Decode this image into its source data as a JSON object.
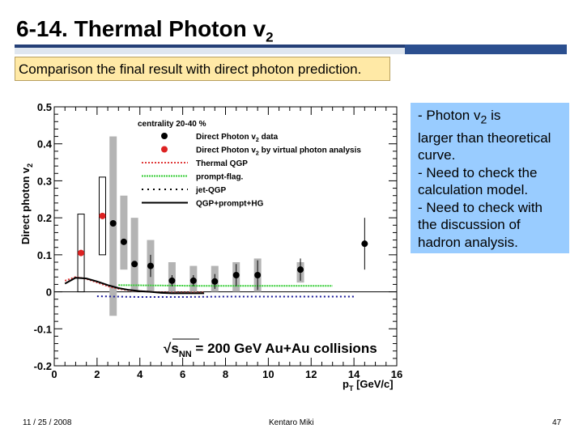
{
  "slide": {
    "title_main": "6-14. Thermal Photon v",
    "title_sub": "2",
    "banner": "Comparison the final result with direct photon prediction.",
    "notes": [
      {
        "pre": "- Photon v",
        "sub": "2",
        "post": " is"
      },
      {
        "pre": "larger than theoretical",
        "sub": "",
        "post": ""
      },
      {
        "pre": "curve.",
        "sub": "",
        "post": ""
      },
      {
        "pre": "- Need to check the",
        "sub": "",
        "post": ""
      },
      {
        "pre": "calculation model.",
        "sub": "",
        "post": ""
      },
      {
        "pre": "- Need to check with",
        "sub": "",
        "post": ""
      },
      {
        "pre": "the discussion of",
        "sub": "",
        "post": ""
      },
      {
        "pre": "hadron analysis.",
        "sub": "",
        "post": ""
      }
    ],
    "footer_date": "11 / 25 / 2008",
    "footer_author": "Kentaro Miki",
    "footer_page": "47"
  },
  "colors": {
    "title_rule": "#243f77",
    "banner_bg": "#ffe9a6",
    "note_bg": "#99ccff",
    "data_black": "#000000",
    "data_red": "#dd2222",
    "syst_gray": "#b4b4b4",
    "thermal_red": "#e03a3a",
    "prompt_green": "#33cc33",
    "jet_blue": "#1a1a99"
  },
  "chart_data": {
    "type": "scatter",
    "title": "",
    "xlabel": "p_T [GeV/c]",
    "xlabel_main": "p",
    "xlabel_sub": "T",
    "xlabel_unit": "[GeV/c]",
    "ylabel": "Direct photon v_2",
    "ylabel_main": "Direct photon v",
    "ylabel_sub": "2",
    "xlim": [
      0,
      16
    ],
    "ylim": [
      -0.2,
      0.5
    ],
    "x_ticks": [
      0,
      2,
      4,
      6,
      8,
      10,
      12,
      14,
      16
    ],
    "x_tick_labels": [
      "0",
      "2",
      "4",
      "6",
      "8",
      "10",
      "12",
      "14",
      "16"
    ],
    "y_ticks": [
      -0.2,
      -0.1,
      0,
      0.1,
      0.2,
      0.3,
      0.4,
      0.5
    ],
    "y_tick_labels": [
      "-0.2",
      "-0.1",
      "0",
      "0.1",
      "0.2",
      "0.3",
      "0.4",
      "0.5"
    ],
    "annotation_sqrt": "√",
    "annotation_main": "s",
    "annotation_sub": "NN",
    "annotation_rest": " = 200 GeV Au+Au collisions",
    "legend_header": "centrality 20-40 %",
    "legend": [
      {
        "label": "Direct Photon v",
        "sub": "2",
        "post": " data",
        "kind": "black-dot"
      },
      {
        "label": "Direct Photon v",
        "sub": "2",
        "post": " by virtual photon analysis",
        "kind": "red-dot"
      },
      {
        "label": "Thermal QGP",
        "sub": "",
        "post": "",
        "kind": "red-dotted"
      },
      {
        "label": "prompt-flag.",
        "sub": "",
        "post": "",
        "kind": "green-dotted"
      },
      {
        "label": "jet-QGP",
        "sub": "",
        "post": "",
        "kind": "black-dotted"
      },
      {
        "label": "QGP+prompt+HG",
        "sub": "",
        "post": "",
        "kind": "black-solid"
      }
    ],
    "series": [
      {
        "name": "Direct Photon v2 data",
        "points": [
          {
            "x": 2.75,
            "y": 0.185,
            "err": 0.0,
            "syst": [
              -0.065,
              0.42
            ]
          },
          {
            "x": 3.25,
            "y": 0.135,
            "err": 0.0,
            "syst": [
              0.06,
              0.26
            ]
          },
          {
            "x": 3.75,
            "y": 0.075,
            "err": 0.0,
            "syst": [
              0.0,
              0.2
            ]
          },
          {
            "x": 4.5,
            "y": 0.07,
            "err": 0.03,
            "syst": [
              -0.0,
              0.14
            ]
          },
          {
            "x": 5.5,
            "y": 0.03,
            "err": 0.015,
            "syst": [
              0.0,
              0.08
            ]
          },
          {
            "x": 6.5,
            "y": 0.03,
            "err": 0.015,
            "syst": [
              0.0,
              0.07
            ]
          },
          {
            "x": 7.5,
            "y": 0.028,
            "err": 0.02,
            "syst": [
              0.0,
              0.07
            ]
          },
          {
            "x": 8.5,
            "y": 0.045,
            "err": 0.03,
            "syst": [
              0.0,
              0.08
            ]
          },
          {
            "x": 9.5,
            "y": 0.045,
            "err": 0.04,
            "syst": [
              0.0,
              0.09
            ]
          },
          {
            "x": 11.5,
            "y": 0.06,
            "err": 0.03,
            "syst": [
              0.025,
              0.08
            ]
          },
          {
            "x": 14.5,
            "y": 0.13,
            "err": 0.07,
            "syst": [
              0.0,
              0.0
            ]
          }
        ]
      },
      {
        "name": "Direct Photon v2 by virtual photon analysis",
        "points": [
          {
            "x": 1.25,
            "y": 0.105,
            "box": [
              0.0,
              0.21
            ]
          },
          {
            "x": 2.25,
            "y": 0.205,
            "box": [
              0.1,
              0.31
            ]
          }
        ]
      },
      {
        "name": "Thermal QGP",
        "x": [
          0.5,
          1.0,
          1.5,
          2.0,
          2.5,
          3.0,
          3.5,
          4.0,
          4.5,
          5.0,
          5.5,
          6.0,
          6.5,
          7.0
        ],
        "y": [
          0.03,
          0.04,
          0.035,
          0.025,
          0.015,
          0.008,
          0.004,
          0.002,
          0.0,
          -0.002,
          -0.002,
          -0.002,
          -0.002,
          -0.002
        ]
      },
      {
        "name": "prompt-flag.",
        "x": [
          3.0,
          5.0,
          7.0,
          9.0,
          11.0,
          13.0
        ],
        "y": [
          0.018,
          0.017,
          0.016,
          0.016,
          0.016,
          0.016
        ]
      },
      {
        "name": "jet-QGP",
        "x": [
          2.0,
          4.0,
          6.0,
          8.0,
          10.0,
          12.0,
          14.0
        ],
        "y": [
          -0.012,
          -0.014,
          -0.014,
          -0.013,
          -0.013,
          -0.013,
          -0.013
        ]
      },
      {
        "name": "QGP+prompt+HG",
        "x": [
          0.5,
          1.0,
          1.5,
          2.0,
          2.5,
          3.0,
          3.5,
          4.0,
          4.5,
          5.0,
          5.5,
          6.0,
          7.0
        ],
        "y": [
          0.022,
          0.038,
          0.036,
          0.028,
          0.018,
          0.01,
          0.005,
          0.002,
          0.0,
          -0.003,
          -0.004,
          -0.004,
          -0.004
        ]
      }
    ]
  }
}
